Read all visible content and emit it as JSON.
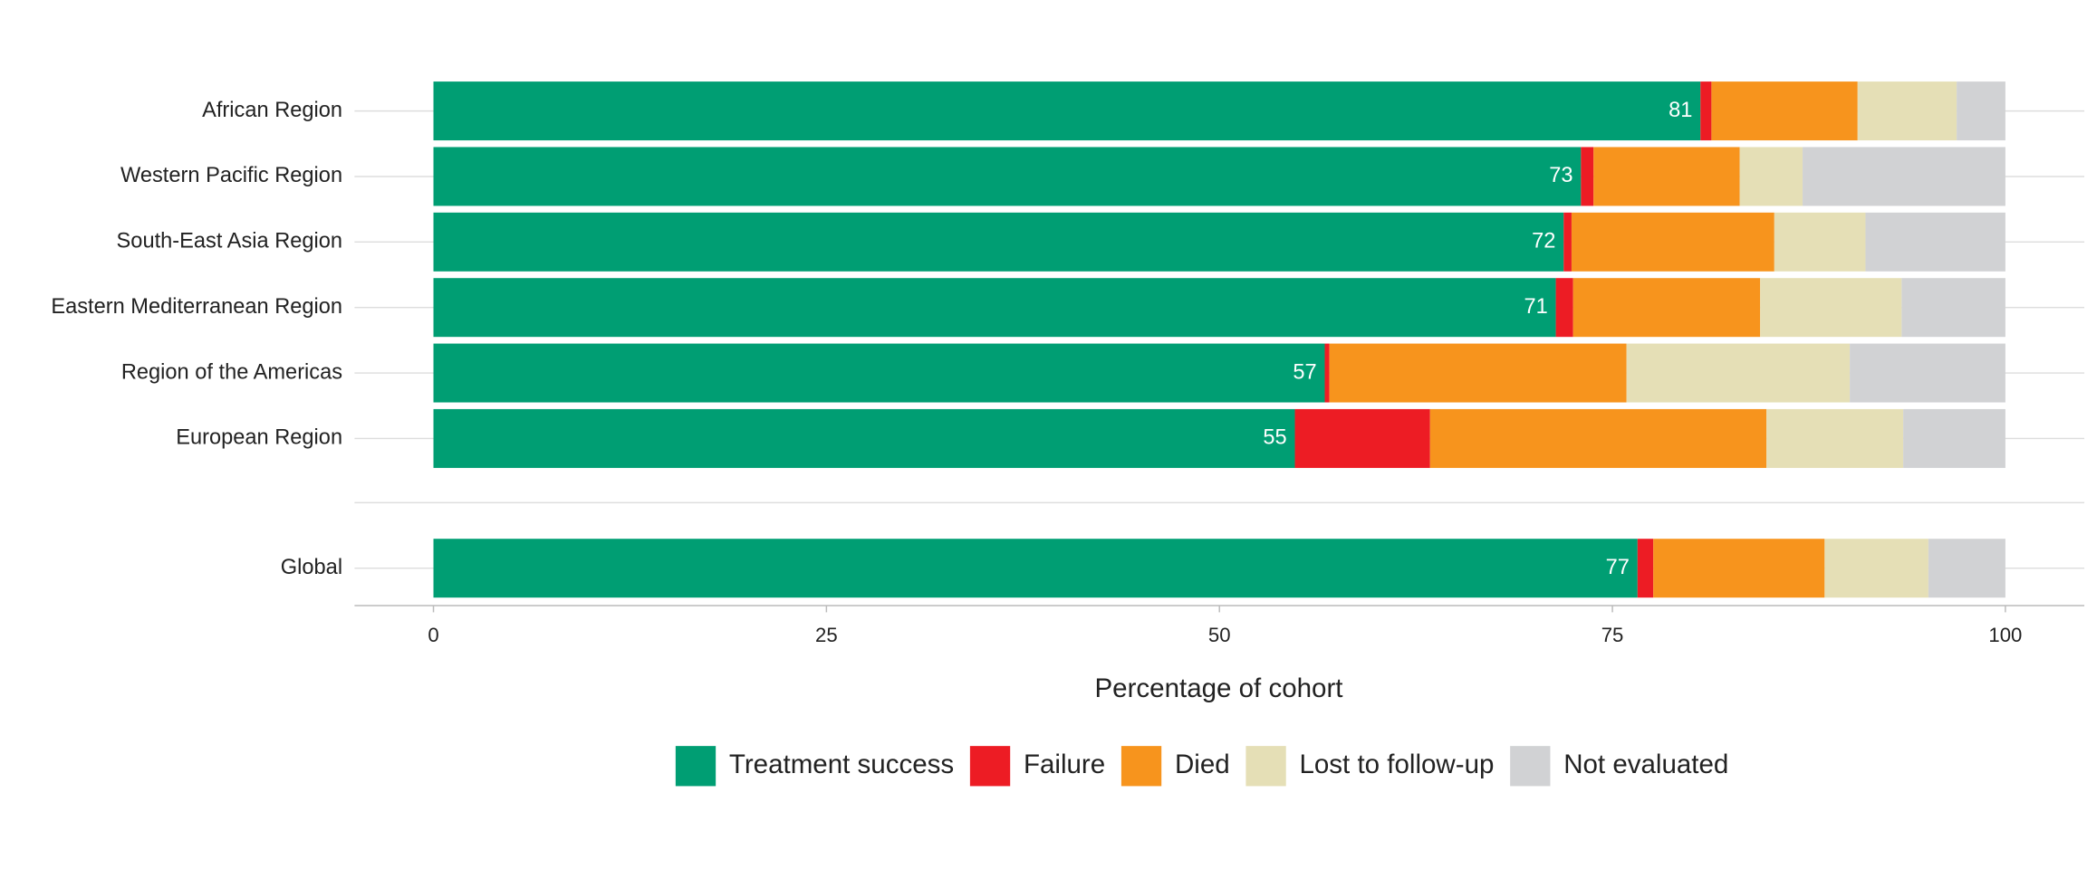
{
  "chart_data": {
    "type": "stacked_bar_horizontal",
    "categories": [
      "African Region",
      "Western Pacific Region",
      "South-East Asia Region",
      "Eastern Mediterranean Region",
      "Region of the Americas",
      "European Region",
      "Global"
    ],
    "series": [
      {
        "name": "Treatment success",
        "color": "#009e73",
        "values": [
          80.6,
          73.0,
          71.9,
          71.4,
          56.7,
          54.8,
          76.6
        ],
        "value_labels": [
          "81",
          "73",
          "72",
          "71",
          "57",
          "55",
          "77"
        ]
      },
      {
        "name": "Failure",
        "color": "#ed1c24",
        "values": [
          0.7,
          0.8,
          0.5,
          1.1,
          0.3,
          8.6,
          1.0
        ]
      },
      {
        "name": "Died",
        "color": "#f7941d",
        "values": [
          9.3,
          9.3,
          12.9,
          11.9,
          18.9,
          21.4,
          10.9
        ]
      },
      {
        "name": "Lost to follow-up",
        "color": "#e5dfb6",
        "values": [
          6.3,
          4.0,
          5.8,
          9.0,
          14.2,
          8.7,
          6.6
        ]
      },
      {
        "name": "Not evaluated",
        "color": "#d1d2d4",
        "values": [
          3.1,
          12.9,
          8.9,
          6.6,
          9.9,
          6.5,
          4.9
        ]
      }
    ],
    "xlabel": "Percentage of cohort",
    "xlim": [
      0,
      100
    ],
    "xticks": [
      0,
      25,
      50,
      75,
      100
    ],
    "grid": true,
    "legend": "bottom"
  }
}
